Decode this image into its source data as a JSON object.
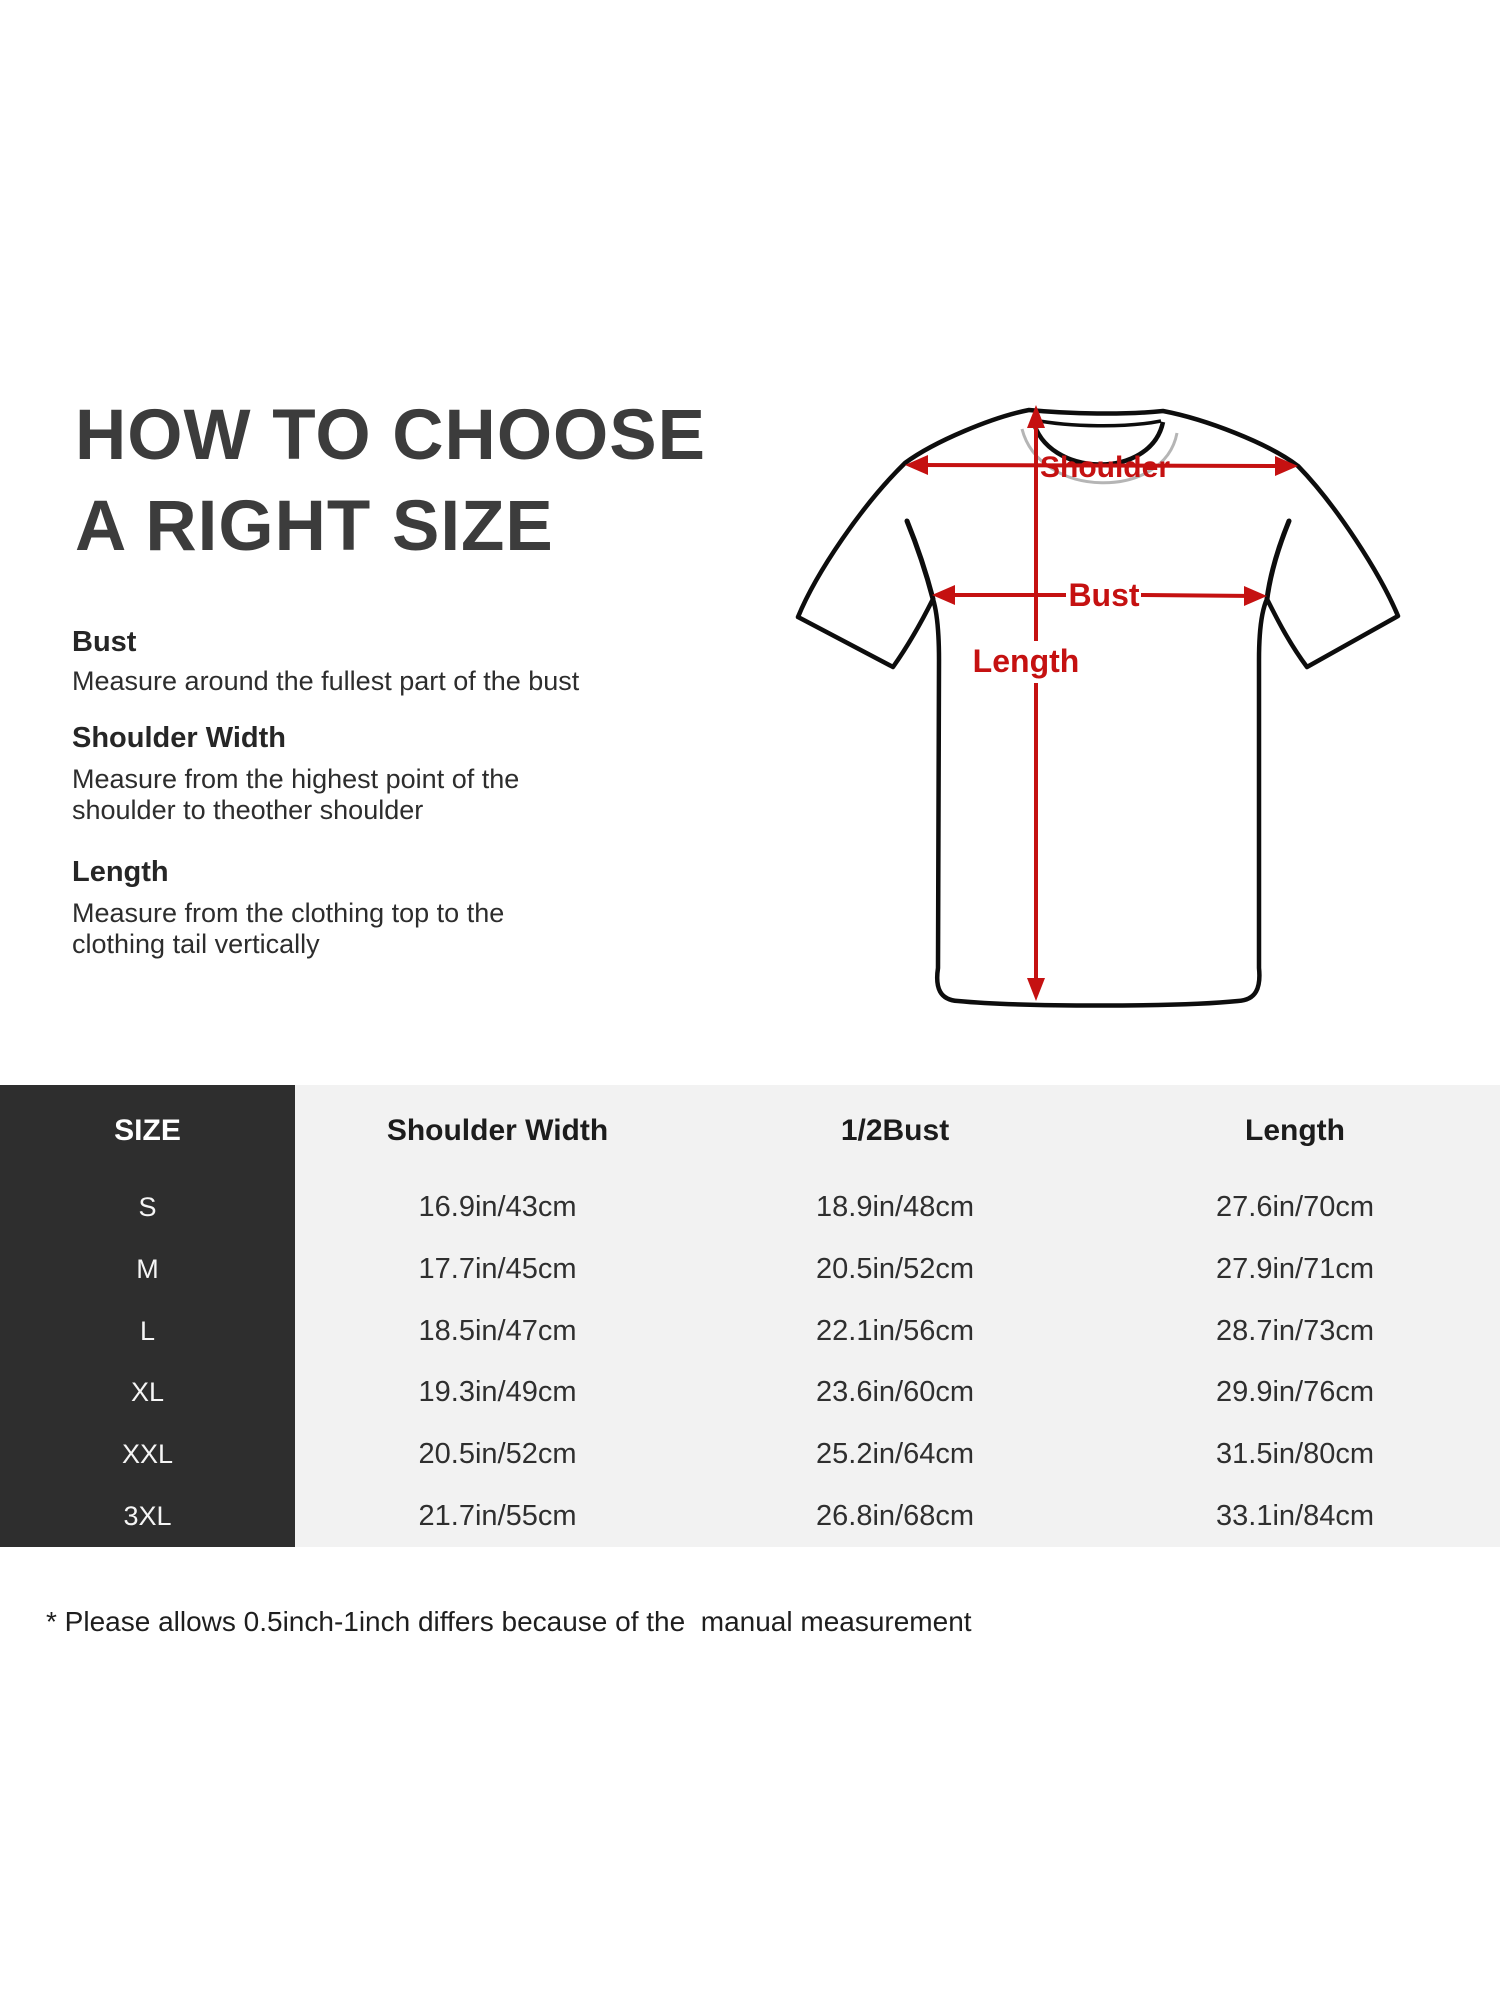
{
  "header": {
    "title_line1": "HOW TO CHOOSE",
    "title_line2": "A RIGHT SIZE"
  },
  "guide": {
    "items": [
      {
        "title": "Bust",
        "lines": [
          "Measure around the fullest part of the bust"
        ]
      },
      {
        "title": "Shoulder Width",
        "lines": [
          "Measure from the highest point of the",
          "shoulder to theother shoulder"
        ]
      },
      {
        "title": "Length",
        "lines": [
          "Measure from the clothing top to the",
          "clothing tail vertically"
        ]
      }
    ]
  },
  "diagram": {
    "shoulder_label": "Shoulder",
    "bust_label": "Bust",
    "length_label": "Length"
  },
  "table": {
    "headers": [
      "SIZE",
      "Shoulder Width",
      "1/2Bust",
      "Length"
    ],
    "rows": [
      [
        "S",
        "16.9in/43cm",
        "18.9in/48cm",
        "27.6in/70cm"
      ],
      [
        "M",
        "17.7in/45cm",
        "20.5in/52cm",
        "27.9in/71cm"
      ],
      [
        "L",
        "18.5in/47cm",
        "22.1in/56cm",
        "28.7in/73cm"
      ],
      [
        "XL",
        "19.3in/49cm",
        "23.6in/60cm",
        "29.9in/76cm"
      ],
      [
        "XXL",
        "20.5in/52cm",
        "25.2in/64cm",
        "31.5in/80cm"
      ],
      [
        "3XL",
        "21.7in/55cm",
        "26.8in/68cm",
        "33.1in/84cm"
      ]
    ]
  },
  "footnote": "* Please allows 0.5inch-1inch differs because of the  manual measurement",
  "colors": {
    "accent_red": "#c51111",
    "table_dark": "#2e2e2e",
    "table_light": "#f2f2f2",
    "title_gray": "#3c3c3c",
    "outline_black": "#0d0d0d"
  }
}
